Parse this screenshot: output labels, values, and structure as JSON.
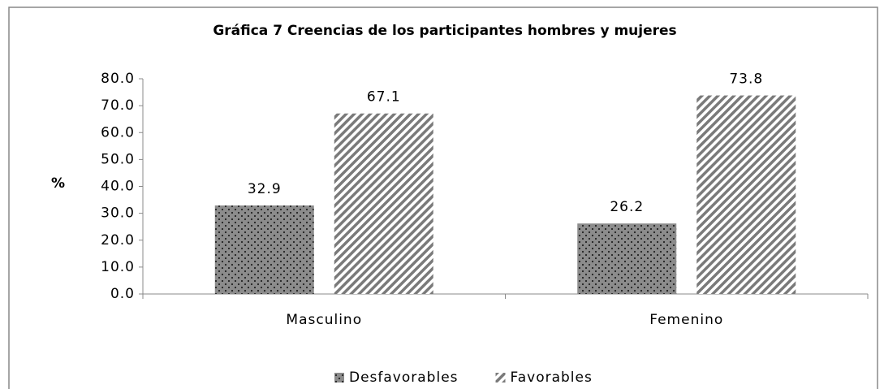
{
  "chart_data": {
    "type": "bar",
    "title": "Gráfica 7 Creencias de los participantes hombres y mujeres",
    "y_label": "%",
    "categories": [
      "Masculino",
      "Femenino"
    ],
    "series": [
      {
        "name": "Desfavorables",
        "color": "#8c8c8c",
        "values": [
          32.9,
          26.2
        ]
      },
      {
        "name": "Favorables",
        "color": "#7a7a7a",
        "values": [
          67.1,
          73.8
        ]
      }
    ],
    "ylim": [
      0,
      80
    ],
    "yticks": [
      {
        "value": 0,
        "label": "0.0"
      },
      {
        "value": 10,
        "label": "10.0"
      },
      {
        "value": 20,
        "label": "20.0"
      },
      {
        "value": 30,
        "label": "30.0"
      },
      {
        "value": 40,
        "label": "40.0"
      },
      {
        "value": 50,
        "label": "50.0"
      },
      {
        "value": 60,
        "label": "60.0"
      },
      {
        "value": 70,
        "label": "70.0"
      },
      {
        "value": 80,
        "label": "80.0"
      }
    ],
    "grid": false,
    "legend": "bottom"
  }
}
